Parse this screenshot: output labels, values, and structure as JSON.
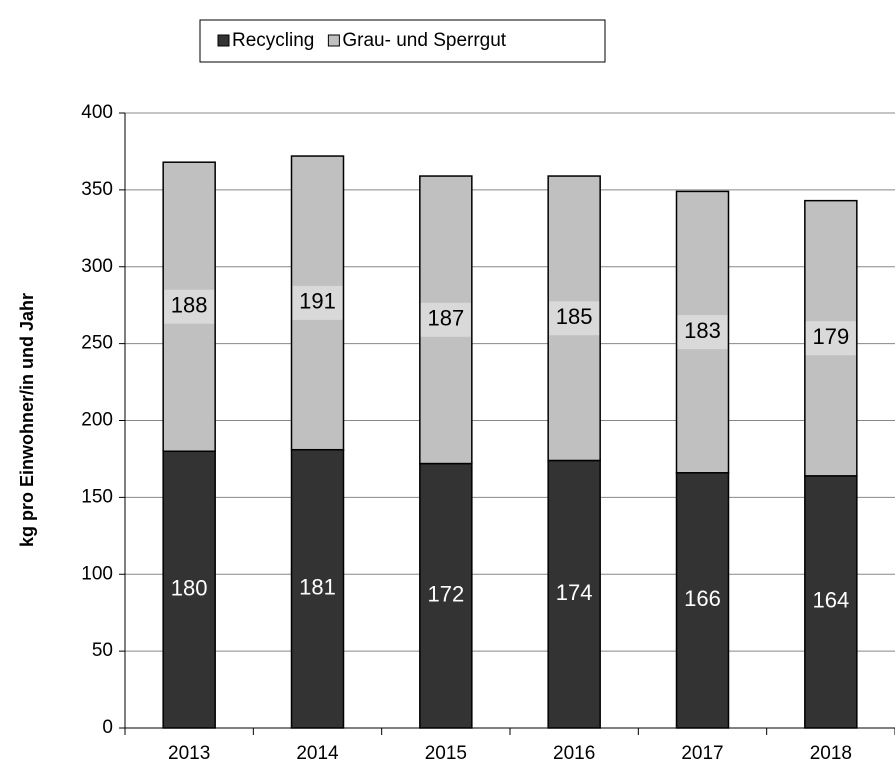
{
  "chart_data": {
    "type": "stacked-bar",
    "y_label": "kg pro Einwohner/in und Jahr",
    "categories": [
      "2013",
      "2014",
      "2015",
      "2016",
      "2017",
      "2018"
    ],
    "series": [
      {
        "name": "Recycling",
        "color": "#333333",
        "label_color": "#ffffff",
        "values": [
          180,
          181,
          172,
          174,
          166,
          164
        ]
      },
      {
        "name": "Grau- und Sperrgut",
        "color": "#c0c0c0",
        "label_color": "#000000",
        "values": [
          188,
          191,
          187,
          185,
          183,
          179
        ]
      }
    ],
    "ylim": [
      0,
      400
    ],
    "yticks": [
      0,
      50,
      100,
      150,
      200,
      250,
      300,
      350,
      400
    ],
    "grid": true
  }
}
